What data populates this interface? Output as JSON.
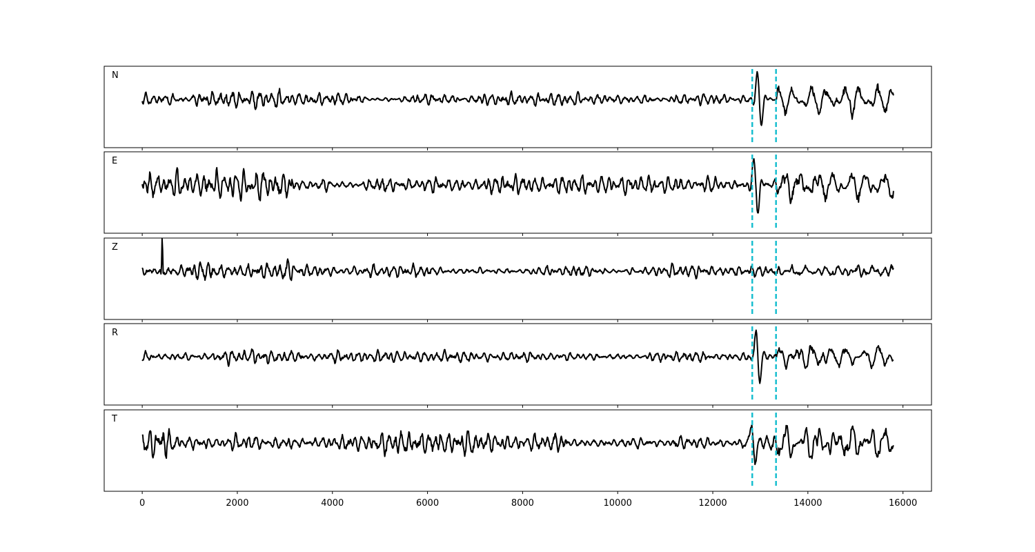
{
  "chart_data": {
    "type": "line",
    "xlim": [
      -800,
      16600
    ],
    "x_ticks": [
      0,
      2000,
      4000,
      6000,
      8000,
      10000,
      12000,
      14000,
      16000
    ],
    "x_tick_labels": [
      "0",
      "2000",
      "4000",
      "6000",
      "8000",
      "10000",
      "12000",
      "14000",
      "16000"
    ],
    "x_range": [
      0,
      15800
    ],
    "y_ticks_visible": false,
    "grid": false,
    "line_color": "#000000",
    "marker_color": "#17becf",
    "markers": [
      12830,
      13330
    ],
    "panels": [
      {
        "label": "N"
      },
      {
        "label": "E"
      },
      {
        "label": "Z"
      },
      {
        "label": "R"
      },
      {
        "label": "T"
      }
    ]
  }
}
